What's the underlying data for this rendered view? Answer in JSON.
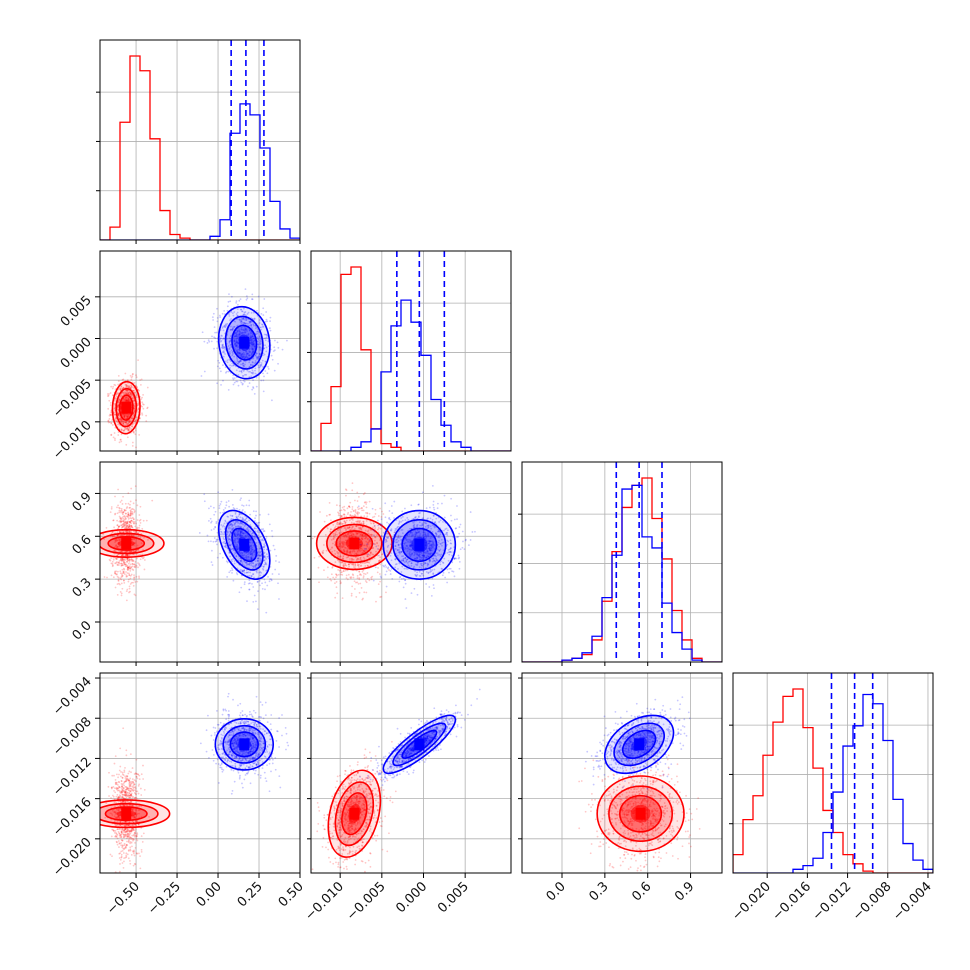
{
  "colors": {
    "red": "#ff0000",
    "blue": "#0000ff",
    "grid": "#b0b0b0",
    "axis": "#000000"
  },
  "chart_data": {
    "type": "corner",
    "grid": true,
    "series": [
      {
        "color": "red"
      },
      {
        "color": "blue"
      }
    ],
    "parameters": [
      {
        "range": [
          -0.72,
          0.5
        ],
        "ticks": [
          -0.5,
          -0.25,
          0.0,
          0.25,
          0.5
        ],
        "tick_labels": [
          "−0.50",
          "−0.25",
          "0.00",
          "0.25",
          "0.50"
        ],
        "quantiles_blue": [
          0.08,
          0.17,
          0.28
        ],
        "hist": {
          "red": [
            0,
            0.07,
            0.64,
            1.0,
            0.92,
            0.55,
            0.16,
            0.03,
            0.01,
            0,
            0,
            0,
            0,
            0,
            0,
            0,
            0,
            0,
            0,
            0
          ],
          "blue": [
            0,
            0,
            0,
            0,
            0,
            0,
            0,
            0,
            0,
            0,
            0,
            0.02,
            0.11,
            0.58,
            0.74,
            0.68,
            0.5,
            0.21,
            0.06,
            0.01
          ]
        }
      },
      {
        "range": [
          -0.0135,
          0.0105
        ],
        "ticks": [
          -0.01,
          -0.005,
          0.0,
          0.005
        ],
        "tick_labels": [
          "−0.010",
          "−0.005",
          "0.000",
          "0.005"
        ],
        "quantiles_blue": [
          -0.0032,
          -0.0005,
          0.0025
        ],
        "hist": {
          "red": [
            0,
            0.15,
            0.35,
            0.96,
            1.0,
            0.55,
            0.12,
            0.04,
            0.02,
            0,
            0,
            0,
            0,
            0,
            0,
            0,
            0,
            0,
            0,
            0
          ],
          "blue": [
            0,
            0,
            0,
            0,
            0.02,
            0.05,
            0.12,
            0.43,
            0.68,
            0.82,
            0.7,
            0.52,
            0.28,
            0.14,
            0.05,
            0.02,
            0,
            0,
            0,
            0
          ]
        }
      },
      {
        "range": [
          -0.28,
          1.12
        ],
        "ticks": [
          0.0,
          0.3,
          0.6,
          0.9
        ],
        "tick_labels": [
          "0.0",
          "0.3",
          "0.6",
          "0.9"
        ],
        "quantiles_blue": [
          0.38,
          0.54,
          0.7
        ],
        "hist": {
          "red": [
            0,
            0,
            0,
            0,
            0.01,
            0.02,
            0.04,
            0.12,
            0.33,
            0.6,
            0.84,
            0.96,
            1.0,
            0.78,
            0.56,
            0.28,
            0.12,
            0.02,
            0,
            0
          ],
          "blue": [
            0,
            0,
            0,
            0,
            0.01,
            0.02,
            0.05,
            0.14,
            0.35,
            0.58,
            0.94,
            0.96,
            0.68,
            0.62,
            0.32,
            0.16,
            0.07,
            0.01,
            0,
            0
          ]
        }
      },
      {
        "range": [
          -0.0234,
          -0.0035
        ],
        "ticks": [
          -0.02,
          -0.016,
          -0.012,
          -0.008,
          -0.004
        ],
        "tick_labels": [
          "−0.020",
          "−0.016",
          "−0.012",
          "−0.008",
          "−0.004"
        ],
        "quantiles_blue": [
          -0.0136,
          -0.0113,
          -0.0095
        ],
        "hist": {
          "red": [
            0.1,
            0.29,
            0.42,
            0.64,
            0.82,
            0.96,
            1.0,
            0.79,
            0.57,
            0.34,
            0.22,
            0.1,
            0.05,
            0.01,
            0,
            0,
            0,
            0,
            0,
            0
          ],
          "blue": [
            0,
            0,
            0,
            0,
            0,
            0,
            0.02,
            0.04,
            0.08,
            0.22,
            0.44,
            0.69,
            0.8,
            0.97,
            0.92,
            0.72,
            0.4,
            0.16,
            0.07,
            0.02
          ]
        }
      }
    ],
    "clusters": {
      "red": {
        "means": [
          -0.56,
          -0.0083,
          0.55,
          -0.0175
        ],
        "sds": [
          0.035,
          0.0013,
          0.11,
          0.0018
        ]
      },
      "blue": {
        "means": [
          0.16,
          -0.0005,
          0.54,
          -0.0106
        ],
        "sds": [
          0.065,
          0.0018,
          0.1,
          0.0012
        ]
      }
    },
    "correlations": {
      "0-1": {
        "red": 0.05,
        "blue": -0.1
      },
      "0-2": {
        "red": 0.0,
        "blue": -0.45
      },
      "1-2": {
        "red": 0.0,
        "blue": 0.0
      },
      "0-3": {
        "red": 0.0,
        "blue": 0.0
      },
      "1-3": {
        "red": 0.3,
        "blue": 0.85
      },
      "2-3": {
        "red": 0.0,
        "blue": 0.4
      }
    }
  }
}
